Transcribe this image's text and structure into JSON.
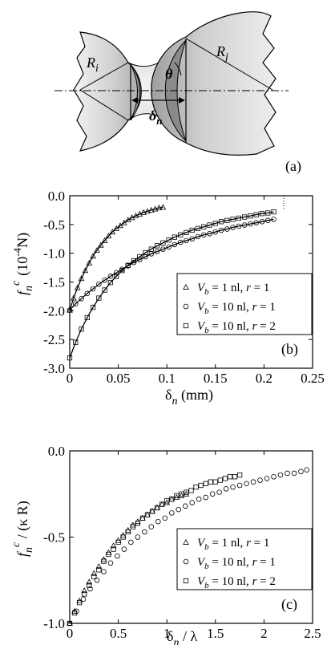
{
  "panel_a": {
    "label": "(a)",
    "r_left": "R",
    "r_left_sub": "i",
    "r_right": "R",
    "r_right_sub": "j",
    "theta": "θ",
    "delta": "δ",
    "delta_sub": "n"
  },
  "chart_data": [
    {
      "type": "scatter",
      "panel_label": "(b)",
      "xlabel": "δ",
      "xlabel_sub": "n",
      "xlabel_unit": " (mm)",
      "ylabel_main": "f",
      "ylabel_sub": "n",
      "ylabel_sup": "c",
      "ylabel_unit": "(10",
      "ylabel_exp": "-4",
      "ylabel_unit_end": "N)",
      "xlim": [
        0,
        0.25
      ],
      "ylim": [
        -3.0,
        0.0
      ],
      "xticks": [
        "0",
        "0.05",
        "0.1",
        "0.15",
        "0.2",
        "0.25"
      ],
      "yticks": [
        "0.0",
        "-0.5",
        "-1.0",
        "-1.5",
        "-2.0",
        "-2.5",
        "-3.0"
      ],
      "xtick_values": [
        0,
        0.05,
        0.1,
        0.15,
        0.2,
        0.25
      ],
      "ytick_values": [
        0.0,
        -0.5,
        -1.0,
        -1.5,
        -2.0,
        -2.5,
        -3.0
      ],
      "legend_position": "center-right",
      "series": [
        {
          "marker": "triangle",
          "legend": {
            "v": "V",
            "sub": "b",
            "rest": " = 1 nl, ",
            "r": "r",
            "rest2": " = 1"
          },
          "x": [
            0.0,
            0.004,
            0.008,
            0.012,
            0.016,
            0.02,
            0.024,
            0.028,
            0.032,
            0.036,
            0.04,
            0.044,
            0.048,
            0.052,
            0.056,
            0.06,
            0.064,
            0.068,
            0.072,
            0.076,
            0.08,
            0.084,
            0.088,
            0.092,
            0.096
          ],
          "y": [
            -1.99,
            -1.78,
            -1.6,
            -1.44,
            -1.3,
            -1.17,
            -1.05,
            -0.95,
            -0.86,
            -0.78,
            -0.7,
            -0.63,
            -0.57,
            -0.52,
            -0.47,
            -0.42,
            -0.38,
            -0.35,
            -0.32,
            -0.29,
            -0.27,
            -0.25,
            -0.23,
            -0.21,
            -0.2
          ]
        },
        {
          "marker": "circle",
          "legend": {
            "v": "V",
            "sub": "b",
            "rest": " = 10 nl, ",
            "r": "r",
            "rest2": " = 1"
          },
          "x": [
            0.0,
            0.006,
            0.012,
            0.018,
            0.024,
            0.03,
            0.036,
            0.042,
            0.048,
            0.054,
            0.06,
            0.066,
            0.072,
            0.078,
            0.084,
            0.09,
            0.096,
            0.102,
            0.108,
            0.114,
            0.12,
            0.126,
            0.132,
            0.138,
            0.144,
            0.15,
            0.156,
            0.162,
            0.168,
            0.174,
            0.18,
            0.186,
            0.192,
            0.198,
            0.204,
            0.21
          ],
          "y": [
            -1.99,
            -1.88,
            -1.79,
            -1.7,
            -1.62,
            -1.54,
            -1.47,
            -1.4,
            -1.34,
            -1.28,
            -1.22,
            -1.16,
            -1.11,
            -1.06,
            -1.01,
            -0.97,
            -0.93,
            -0.89,
            -0.85,
            -0.81,
            -0.78,
            -0.75,
            -0.71,
            -0.68,
            -0.66,
            -0.63,
            -0.6,
            -0.58,
            -0.55,
            -0.53,
            -0.51,
            -0.49,
            -0.47,
            -0.45,
            -0.43,
            -0.41
          ]
        },
        {
          "marker": "square",
          "legend": {
            "v": "V",
            "sub": "b",
            "rest": " = 10 nl, ",
            "r": "r",
            "rest2": " = 2"
          },
          "x": [
            0.0,
            0.006,
            0.012,
            0.018,
            0.024,
            0.03,
            0.036,
            0.042,
            0.048,
            0.054,
            0.06,
            0.066,
            0.072,
            0.078,
            0.084,
            0.09,
            0.096,
            0.102,
            0.108,
            0.114,
            0.12,
            0.126,
            0.132,
            0.138,
            0.144,
            0.15,
            0.156,
            0.162,
            0.168,
            0.174,
            0.18,
            0.186,
            0.192,
            0.198,
            0.204,
            0.21
          ],
          "y": [
            -2.82,
            -2.55,
            -2.32,
            -2.12,
            -1.94,
            -1.78,
            -1.64,
            -1.51,
            -1.4,
            -1.3,
            -1.21,
            -1.13,
            -1.06,
            -0.99,
            -0.93,
            -0.87,
            -0.82,
            -0.77,
            -0.72,
            -0.68,
            -0.64,
            -0.6,
            -0.57,
            -0.54,
            -0.51,
            -0.48,
            -0.45,
            -0.43,
            -0.41,
            -0.39,
            -0.37,
            -0.35,
            -0.33,
            -0.31,
            -0.3,
            -0.28
          ]
        }
      ]
    },
    {
      "type": "scatter",
      "panel_label": "(c)",
      "xlabel": "δ",
      "xlabel_sub": "n",
      "xlabel_rest": " / λ",
      "ylabel_main": "f",
      "ylabel_sub": "n",
      "ylabel_sup": "c",
      "ylabel_rest": " / (κ R)",
      "xlim": [
        0,
        2.5
      ],
      "ylim": [
        -1.0,
        0.0
      ],
      "xticks": [
        "0",
        "0.5",
        "1",
        "1.5",
        "2",
        "2.5"
      ],
      "yticks": [
        "0.0",
        "-0.5",
        "-1.0"
      ],
      "xtick_values": [
        0,
        0.5,
        1,
        1.5,
        2,
        2.5
      ],
      "ytick_values": [
        0.0,
        -0.5,
        -1.0
      ],
      "legend_position": "center-right",
      "series": [
        {
          "marker": "triangle",
          "legend": {
            "v": "V",
            "sub": "b",
            "rest": " = 1 nl, ",
            "r": "r",
            "rest2": " = 1"
          },
          "x": [
            0.0,
            0.05,
            0.1,
            0.15,
            0.2,
            0.25,
            0.3,
            0.35,
            0.4,
            0.45,
            0.5,
            0.55,
            0.6,
            0.65,
            0.7,
            0.75,
            0.8,
            0.85,
            0.9,
            0.95,
            1.0,
            1.05,
            1.1,
            1.15,
            1.2
          ],
          "y": [
            -1.0,
            -0.93,
            -0.87,
            -0.81,
            -0.76,
            -0.71,
            -0.67,
            -0.63,
            -0.59,
            -0.55,
            -0.52,
            -0.49,
            -0.46,
            -0.43,
            -0.41,
            -0.39,
            -0.37,
            -0.35,
            -0.33,
            -0.31,
            -0.3,
            -0.28,
            -0.27,
            -0.26,
            -0.25
          ]
        },
        {
          "marker": "circle",
          "legend": {
            "v": "V",
            "sub": "b",
            "rest": " = 10 nl, ",
            "r": "r",
            "rest2": " = 1"
          },
          "x": [
            0.0,
            0.07,
            0.14,
            0.21,
            0.28,
            0.35,
            0.42,
            0.49,
            0.56,
            0.63,
            0.7,
            0.77,
            0.84,
            0.91,
            0.98,
            1.05,
            1.12,
            1.19,
            1.26,
            1.33,
            1.4,
            1.47,
            1.54,
            1.61,
            1.68,
            1.75,
            1.82,
            1.89,
            1.96,
            2.03,
            2.1,
            2.17,
            2.24,
            2.31,
            2.38,
            2.44
          ],
          "y": [
            -1.0,
            -0.93,
            -0.86,
            -0.8,
            -0.75,
            -0.7,
            -0.65,
            -0.61,
            -0.57,
            -0.53,
            -0.5,
            -0.47,
            -0.44,
            -0.41,
            -0.39,
            -0.36,
            -0.34,
            -0.32,
            -0.3,
            -0.28,
            -0.27,
            -0.25,
            -0.24,
            -0.22,
            -0.21,
            -0.2,
            -0.19,
            -0.18,
            -0.17,
            -0.16,
            -0.15,
            -0.14,
            -0.13,
            -0.13,
            -0.12,
            -0.11
          ]
        },
        {
          "marker": "square",
          "legend": {
            "v": "V",
            "sub": "b",
            "rest": " = 10 nl, ",
            "r": "r",
            "rest2": " = 2"
          },
          "x": [
            0.0,
            0.05,
            0.1,
            0.15,
            0.2,
            0.25,
            0.3,
            0.35,
            0.4,
            0.45,
            0.5,
            0.55,
            0.6,
            0.65,
            0.7,
            0.75,
            0.8,
            0.85,
            0.9,
            0.95,
            1.0,
            1.05,
            1.1,
            1.15,
            1.2,
            1.25,
            1.3,
            1.35,
            1.4,
            1.45,
            1.5,
            1.55,
            1.6,
            1.65,
            1.7,
            1.75
          ],
          "y": [
            -1.0,
            -0.94,
            -0.88,
            -0.83,
            -0.78,
            -0.73,
            -0.69,
            -0.64,
            -0.6,
            -0.57,
            -0.53,
            -0.5,
            -0.47,
            -0.44,
            -0.42,
            -0.39,
            -0.37,
            -0.35,
            -0.33,
            -0.31,
            -0.29,
            -0.28,
            -0.26,
            -0.25,
            -0.24,
            -0.23,
            -0.21,
            -0.2,
            -0.19,
            -0.18,
            -0.18,
            -0.17,
            -0.16,
            -0.15,
            -0.15,
            -0.14
          ]
        }
      ]
    }
  ]
}
